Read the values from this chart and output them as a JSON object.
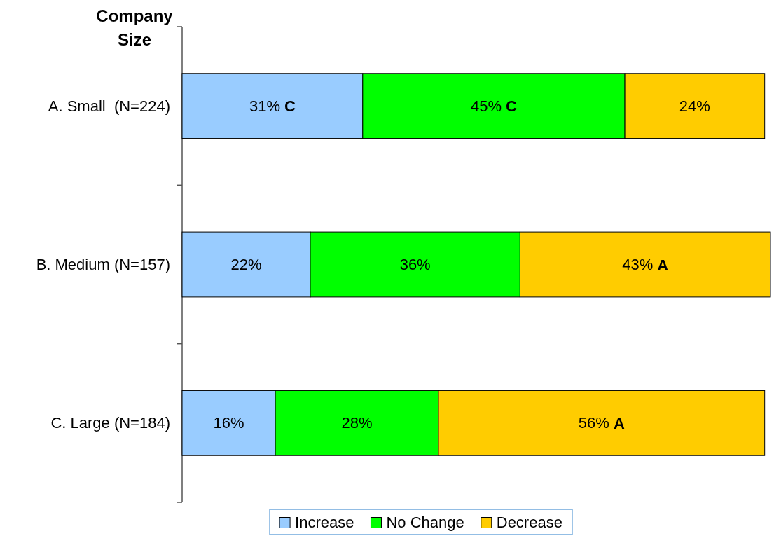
{
  "chart_data": {
    "type": "bar",
    "orientation": "horizontal",
    "stacked": true,
    "ylabel": "Company Size",
    "categories": [
      "A. Small  (N=224)",
      "B. Medium (N=157)",
      "C. Large (N=184)"
    ],
    "series": [
      {
        "name": "Increase",
        "color": "#99ccff",
        "values": [
          31,
          22,
          16
        ],
        "value_labels": [
          "31% C",
          "22%",
          "16%"
        ]
      },
      {
        "name": "No Change",
        "color": "#00ff00",
        "values": [
          45,
          36,
          28
        ],
        "value_labels": [
          "45% C",
          "36%",
          "28%"
        ]
      },
      {
        "name": "Decrease",
        "color": "#ffcc00",
        "values": [
          24,
          43,
          56
        ],
        "value_labels": [
          "24%",
          "43% A",
          "56% A"
        ]
      }
    ],
    "legend": "bottom",
    "tick_labels": "y"
  }
}
